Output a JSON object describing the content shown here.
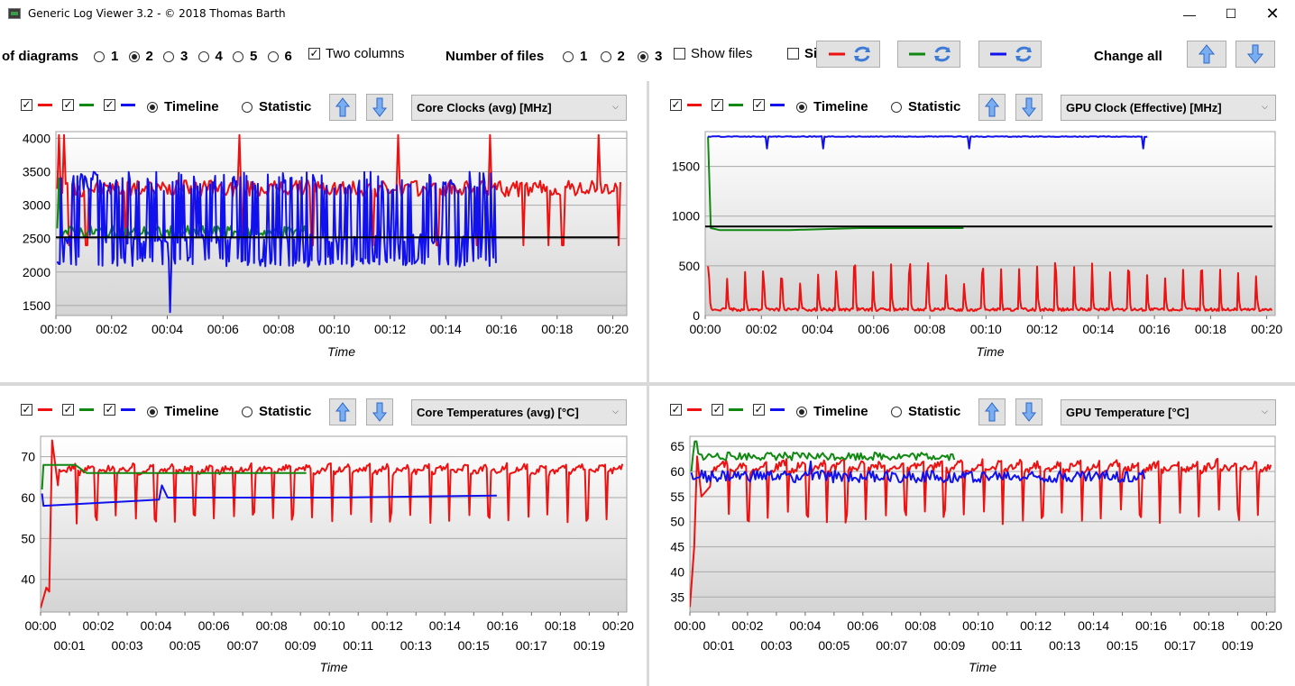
{
  "window": {
    "title": "Generic Log Viewer 3.2 - © 2018 Thomas Barth"
  },
  "toolbar": {
    "diagrams_label": "of diagrams",
    "diagram_options": [
      "1",
      "2",
      "3",
      "4",
      "5",
      "6"
    ],
    "diagram_selected": "2",
    "two_columns_label": "Two columns",
    "files_label": "Number of files",
    "file_options": [
      "1",
      "2",
      "3"
    ],
    "file_selected": "3",
    "show_files_label": "Show files",
    "si_label": "Si",
    "change_all_label": "Change all"
  },
  "colors": {
    "red": "#ee1111",
    "green": "#118811",
    "blue": "#1111ee",
    "black": "#000000",
    "arrow": "#3d7bd6"
  },
  "panels": [
    {
      "mode_timeline": "Timeline",
      "mode_statistic": "Statistic",
      "dropdown": "Core Clocks (avg) [MHz]",
      "chart_data": {
        "type": "line",
        "xlabel": "Time",
        "x_ticks": [
          "00:00",
          "00:02",
          "00:04",
          "00:06",
          "00:08",
          "00:10",
          "00:12",
          "00:14",
          "00:16",
          "00:18",
          "00:20"
        ],
        "x_ticks_minor": [],
        "xlim": [
          0,
          20.5
        ],
        "y_ticks": [
          "1500",
          "2000",
          "2500",
          "3000",
          "3500",
          "4000"
        ],
        "ylim": [
          1350,
          4100
        ],
        "reference_line": 2520,
        "series": [
          {
            "color": "red",
            "kind": "noisy",
            "start": 0.05,
            "end": 20.3,
            "base": 3250,
            "amp": 120,
            "dips": [
              0.1,
              0.5,
              1.1,
              2.5,
              4.9,
              6.7,
              9.2,
              11.4,
              13.7,
              15.1,
              16.8,
              17.7,
              18.2,
              20.2
            ],
            "dip_to": 2400,
            "spikes": [
              0.1,
              0.3,
              6.6,
              12.3,
              15.6,
              19.5
            ],
            "spike_to": 4050
          },
          {
            "color": "green",
            "kind": "noisy",
            "start": 0.05,
            "end": 9.1,
            "base": 2600,
            "amp": 90,
            "dips": [
              0.1
            ],
            "dip_to": 1950,
            "spikes": [
              0.1
            ],
            "spike_to": 3400
          },
          {
            "color": "blue",
            "kind": "hash",
            "start": 0.05,
            "end": 15.8,
            "low": 2080,
            "high": 3500,
            "base": 2500,
            "dips": [
              4.1
            ],
            "dip_to": 1400
          }
        ]
      }
    },
    {
      "mode_timeline": "Timeline",
      "mode_statistic": "Statistic",
      "dropdown": "GPU Clock (Effective) [MHz]",
      "chart_data": {
        "type": "line",
        "xlabel": "Time",
        "x_ticks": [
          "00:00",
          "00:02",
          "00:04",
          "00:06",
          "00:08",
          "00:10",
          "00:12",
          "00:14",
          "00:16",
          "00:18",
          "00:20"
        ],
        "x_ticks_minor": [],
        "xlim": [
          0,
          20.3
        ],
        "y_ticks": [
          "0",
          "500",
          "1000",
          "1500"
        ],
        "ylim": [
          0,
          1850
        ],
        "reference_line": 895,
        "series": [
          {
            "color": "red",
            "kind": "pulse",
            "start": 0.1,
            "end": 20.2,
            "base": 60,
            "period": 0.65,
            "peak": 420,
            "peak_var": 120
          },
          {
            "color": "green",
            "kind": "step",
            "points": [
              [
                0.1,
                1800
              ],
              [
                0.2,
                880
              ],
              [
                0.5,
                860
              ],
              [
                3,
                860
              ],
              [
                5.5,
                880
              ],
              [
                9.2,
                880
              ]
            ]
          },
          {
            "color": "blue",
            "kind": "flat",
            "start": 0.1,
            "end": 15.8,
            "base": 1800,
            "dips": [
              2.2,
              4.2,
              9.4,
              15.6
            ],
            "dip_to": 1680
          }
        ]
      }
    },
    {
      "mode_timeline": "Timeline",
      "mode_statistic": "Statistic",
      "dropdown": "Core Temperatures (avg) [°C]",
      "chart_data": {
        "type": "line",
        "xlabel": "Time",
        "x_ticks": [
          "00:00",
          "00:02",
          "00:04",
          "00:06",
          "00:08",
          "00:10",
          "00:12",
          "00:14",
          "00:16",
          "00:18",
          "00:20"
        ],
        "x_ticks_minor": [
          "00:01",
          "00:03",
          "00:05",
          "00:07",
          "00:09",
          "00:11",
          "00:13",
          "00:15",
          "00:17",
          "00:19"
        ],
        "xlim": [
          0,
          20.3
        ],
        "y_ticks": [
          "40",
          "50",
          "60",
          "70"
        ],
        "ylim": [
          32,
          75
        ],
        "reference_line": null,
        "series": [
          {
            "color": "red",
            "kind": "sawtooth",
            "start": 0.0,
            "end": 20.2,
            "base": 66,
            "period": 0.68,
            "dip_to": 55,
            "warmup": [
              [
                0.0,
                33
              ],
              [
                0.2,
                38
              ],
              [
                0.3,
                37
              ],
              [
                0.4,
                74
              ],
              [
                0.6,
                63
              ]
            ]
          },
          {
            "color": "green",
            "kind": "step",
            "points": [
              [
                0.05,
                62
              ],
              [
                0.1,
                68
              ],
              [
                1.2,
                68
              ],
              [
                1.6,
                66
              ],
              [
                3,
                66
              ],
              [
                6,
                66
              ],
              [
                9.2,
                66
              ]
            ]
          },
          {
            "color": "blue",
            "kind": "step",
            "points": [
              [
                0.05,
                61
              ],
              [
                0.1,
                58
              ],
              [
                1.5,
                58.5
              ],
              [
                4.1,
                59.5
              ],
              [
                4.2,
                63
              ],
              [
                4.4,
                60
              ],
              [
                10,
                60
              ],
              [
                15.8,
                60.5
              ]
            ]
          }
        ]
      }
    },
    {
      "mode_timeline": "Timeline",
      "mode_statistic": "Statistic",
      "dropdown": "GPU Temperature [°C]",
      "chart_data": {
        "type": "line",
        "xlabel": "Time",
        "x_ticks": [
          "00:00",
          "00:02",
          "00:04",
          "00:06",
          "00:08",
          "00:10",
          "00:12",
          "00:14",
          "00:16",
          "00:18",
          "00:20"
        ],
        "x_ticks_minor": [
          "00:01",
          "00:03",
          "00:05",
          "00:07",
          "00:09",
          "00:11",
          "00:13",
          "00:15",
          "00:17",
          "00:19"
        ],
        "xlim": [
          0,
          20.3
        ],
        "y_ticks": [
          "35",
          "40",
          "45",
          "50",
          "55",
          "60",
          "65"
        ],
        "ylim": [
          32,
          67
        ],
        "reference_line": null,
        "series": [
          {
            "color": "red",
            "kind": "sawtooth",
            "start": 0.0,
            "end": 20.2,
            "base": 60,
            "period": 0.68,
            "dip_to": 51,
            "warmup": [
              [
                0.0,
                33
              ],
              [
                0.15,
                45
              ],
              [
                0.25,
                63
              ],
              [
                0.4,
                55
              ],
              [
                0.7,
                57
              ]
            ]
          },
          {
            "color": "green",
            "kind": "noisy",
            "start": 0.05,
            "end": 9.2,
            "base": 63,
            "amp": 0.8,
            "dips": [
              0.05
            ],
            "dip_to": 60,
            "spikes": [
              0.2
            ],
            "spike_to": 66
          },
          {
            "color": "blue",
            "kind": "noisy",
            "start": 0.05,
            "end": 15.8,
            "base": 59,
            "amp": 1.2,
            "dips": [],
            "dip_to": 56,
            "spikes": [
              4.2
            ],
            "spike_to": 62
          }
        ]
      }
    }
  ]
}
